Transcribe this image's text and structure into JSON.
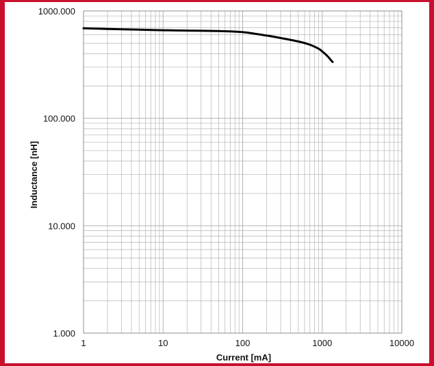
{
  "chart_data": {
    "type": "line",
    "title": "",
    "xlabel": "Current [mA]",
    "ylabel": "Inductance [nH]",
    "x_scale": "log",
    "y_scale": "log",
    "xlim": [
      1,
      10000
    ],
    "ylim": [
      1,
      1000
    ],
    "grid": true,
    "x_tick_labels": [
      "1",
      "10",
      "100",
      "1000",
      "10000"
    ],
    "y_tick_labels": [
      "1000.000",
      "100.000",
      "10.000",
      "1.000"
    ],
    "series": [
      {
        "x": [
          1,
          2,
          5,
          10,
          20,
          50,
          100,
          200,
          300,
          500,
          700,
          900,
          1000,
          1100,
          1200,
          1300,
          1350
        ],
        "y": [
          690,
          680,
          670,
          662,
          657,
          650,
          635,
          590,
          560,
          520,
          485,
          445,
          420,
          395,
          370,
          345,
          335
        ],
        "color": "#000000"
      }
    ]
  },
  "colors": {
    "frame": "#c8102e",
    "grid": "#b3b3b3",
    "curve": "#000000"
  }
}
